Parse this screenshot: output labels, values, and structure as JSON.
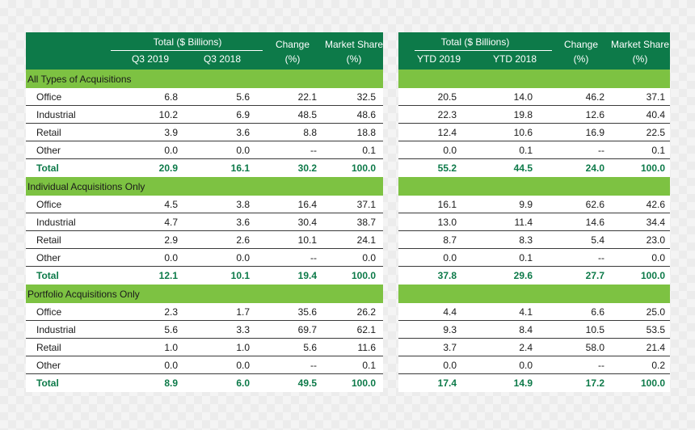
{
  "header_left": {
    "group": "Total ($ Billions)",
    "col1": "Q3 2019",
    "col2": "Q3 2018",
    "change_l1": "Change",
    "change_l2": "(%)",
    "share_l1": "Market Share",
    "share_l2": "(%)"
  },
  "header_right": {
    "group": "Total ($ Billions)",
    "col1": "YTD 2019",
    "col2": "YTD 2018",
    "change_l1": "Change",
    "change_l2": "(%)",
    "share_l1": "Market Share",
    "share_l2": "(%)"
  },
  "colors": {
    "header_green": "#0d7a49",
    "section_green": "#7dc242"
  },
  "sections": [
    {
      "title": "All Types of Acquisitions",
      "rows": [
        {
          "label": "Office",
          "left": [
            "6.8",
            "5.6",
            "22.1",
            "32.5"
          ],
          "right": [
            "20.5",
            "14.0",
            "46.2",
            "37.1"
          ]
        },
        {
          "label": "Industrial",
          "left": [
            "10.2",
            "6.9",
            "48.5",
            "48.6"
          ],
          "right": [
            "22.3",
            "19.8",
            "12.6",
            "40.4"
          ]
        },
        {
          "label": "Retail",
          "left": [
            "3.9",
            "3.6",
            "8.8",
            "18.8"
          ],
          "right": [
            "12.4",
            "10.6",
            "16.9",
            "22.5"
          ]
        },
        {
          "label": "Other",
          "left": [
            "0.0",
            "0.0",
            "--",
            "0.1"
          ],
          "right": [
            "0.0",
            "0.1",
            "--",
            "0.1"
          ]
        },
        {
          "label": "Total",
          "left": [
            "20.9",
            "16.1",
            "30.2",
            "100.0"
          ],
          "right": [
            "55.2",
            "44.5",
            "24.0",
            "100.0"
          ]
        }
      ]
    },
    {
      "title": "Individual Acquisitions Only",
      "rows": [
        {
          "label": "Office",
          "left": [
            "4.5",
            "3.8",
            "16.4",
            "37.1"
          ],
          "right": [
            "16.1",
            "9.9",
            "62.6",
            "42.6"
          ]
        },
        {
          "label": "Industrial",
          "left": [
            "4.7",
            "3.6",
            "30.4",
            "38.7"
          ],
          "right": [
            "13.0",
            "11.4",
            "14.6",
            "34.4"
          ]
        },
        {
          "label": "Retail",
          "left": [
            "2.9",
            "2.6",
            "10.1",
            "24.1"
          ],
          "right": [
            "8.7",
            "8.3",
            "5.4",
            "23.0"
          ]
        },
        {
          "label": "Other",
          "left": [
            "0.0",
            "0.0",
            "--",
            "0.0"
          ],
          "right": [
            "0.0",
            "0.1",
            "--",
            "0.0"
          ]
        },
        {
          "label": "Total",
          "left": [
            "12.1",
            "10.1",
            "19.4",
            "100.0"
          ],
          "right": [
            "37.8",
            "29.6",
            "27.7",
            "100.0"
          ]
        }
      ]
    },
    {
      "title": "Portfolio Acquisitions Only",
      "rows": [
        {
          "label": "Office",
          "left": [
            "2.3",
            "1.7",
            "35.6",
            "26.2"
          ],
          "right": [
            "4.4",
            "4.1",
            "6.6",
            "25.0"
          ]
        },
        {
          "label": "Industrial",
          "left": [
            "5.6",
            "3.3",
            "69.7",
            "62.1"
          ],
          "right": [
            "9.3",
            "8.4",
            "10.5",
            "53.5"
          ]
        },
        {
          "label": "Retail",
          "left": [
            "1.0",
            "1.0",
            "5.6",
            "11.6"
          ],
          "right": [
            "3.7",
            "2.4",
            "58.0",
            "21.4"
          ]
        },
        {
          "label": "Other",
          "left": [
            "0.0",
            "0.0",
            "--",
            "0.1"
          ],
          "right": [
            "0.0",
            "0.0",
            "--",
            "0.2"
          ]
        },
        {
          "label": "Total",
          "left": [
            "8.9",
            "6.0",
            "49.5",
            "100.0"
          ],
          "right": [
            "17.4",
            "14.9",
            "17.2",
            "100.0"
          ]
        }
      ]
    }
  ]
}
